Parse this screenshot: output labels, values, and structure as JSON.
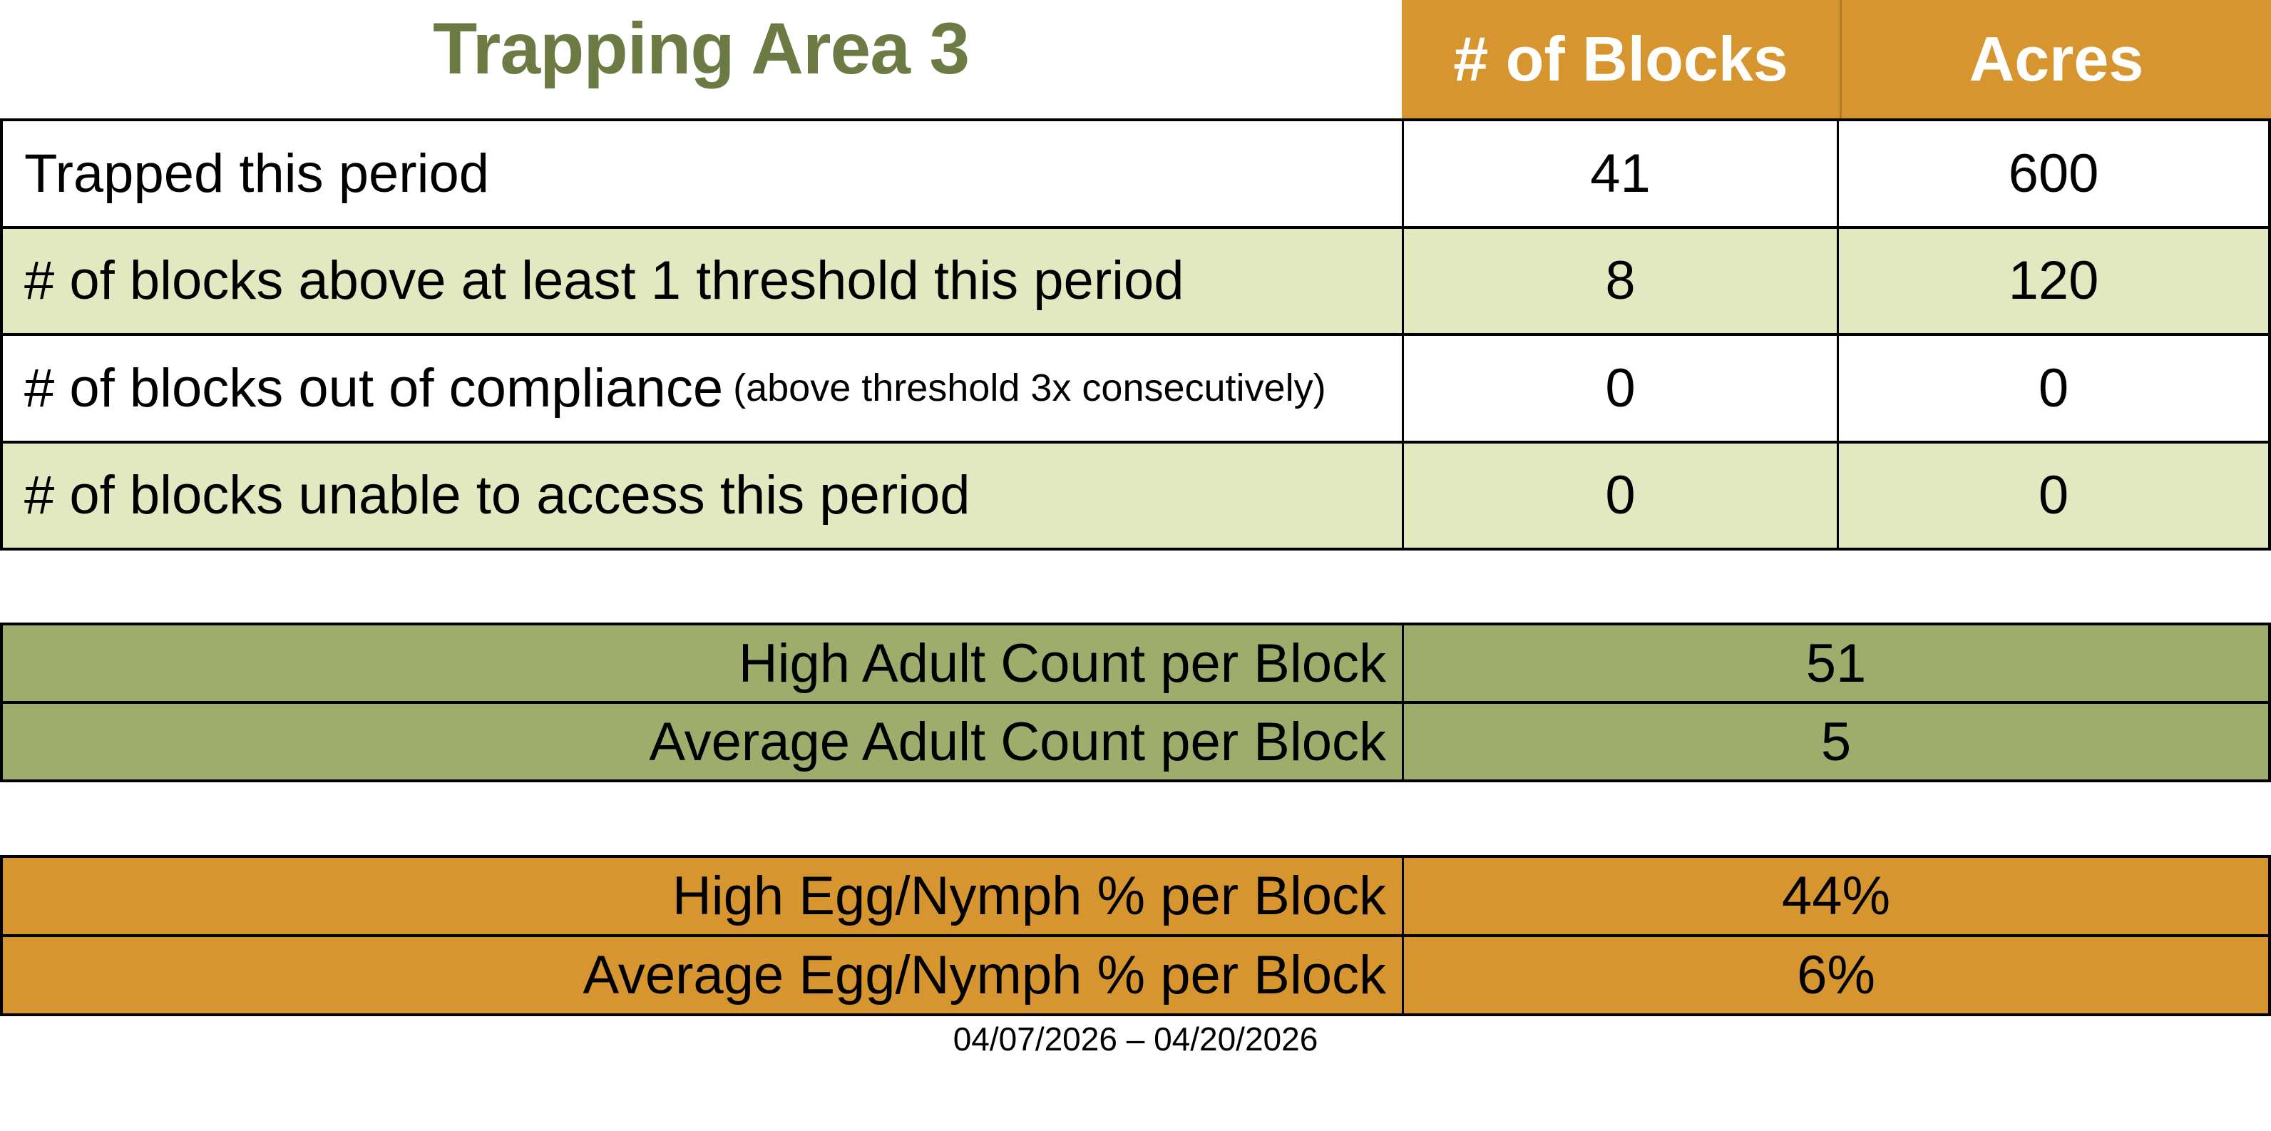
{
  "title": "Trapping Area 3",
  "colors": {
    "orange": "#D6952F",
    "light_green": "#E2E9C0",
    "sage_green": "#9EAD6C",
    "olive_title": "#6C7B43",
    "header_text": "#FFFFFF",
    "border": "#000000"
  },
  "summary_table": {
    "headers": [
      "# of Blocks",
      "Acres"
    ],
    "rows": [
      {
        "label": "Trapped this period",
        "blocks": "41",
        "acres": "600"
      },
      {
        "label": "# of blocks above at least 1 threshold this period",
        "blocks": "8",
        "acres": "120"
      },
      {
        "label": "# of blocks out of compliance",
        "label_note": "(above threshold 3x consecutively)",
        "blocks": "0",
        "acres": "0"
      },
      {
        "label": "# of blocks unable to access this period",
        "blocks": "0",
        "acres": "0"
      }
    ]
  },
  "adult_table": {
    "rows": [
      {
        "label": "High Adult Count per Block",
        "value": "51"
      },
      {
        "label": "Average Adult Count per Block",
        "value": "5"
      }
    ]
  },
  "egg_table": {
    "rows": [
      {
        "label": "High Egg/Nymph % per Block",
        "value": "44%"
      },
      {
        "label": "Average Egg/Nymph % per Block",
        "value": "6%"
      }
    ]
  },
  "date_range": "04/07/2026 – 04/20/2026"
}
